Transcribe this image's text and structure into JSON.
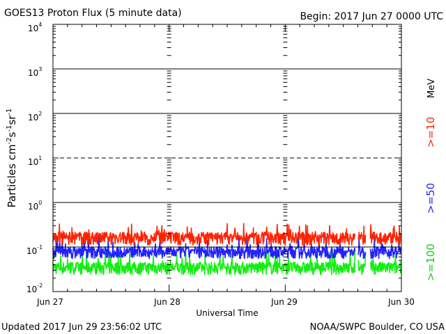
{
  "header": {
    "title": "GOES13 Proton Flux (5 minute data)",
    "begin": "Begin: 2017 Jun 27 0000 UTC"
  },
  "footer": {
    "updated": "Updated 2017 Jun 29 23:56:02 UTC",
    "credit": "NOAA/SWPC Boulder, CO USA"
  },
  "legend": {
    "unit": "MeV",
    "entries": [
      {
        "label": ">=10",
        "color": "#ff2200"
      },
      {
        "label": ">=50",
        "color": "#2222ff"
      },
      {
        "label": ">=100",
        "color": "#11ee11"
      }
    ]
  },
  "chart_data": {
    "type": "line",
    "scale": "log",
    "ylim": [
      0.01,
      10000
    ],
    "ylabel": "Particles cm-2s-1sr-1",
    "xlabel": "Universal Time",
    "x_ticks": [
      "Jun 27",
      "Jun 28",
      "Jun 29",
      "Jun 30"
    ],
    "xlim": [
      "2017-06-27 00:00",
      "2017-06-30 00:00"
    ],
    "y_ticks": [
      {
        "base": "10",
        "exp": "4"
      },
      {
        "base": "10",
        "exp": "3"
      },
      {
        "base": "10",
        "exp": "2"
      },
      {
        "base": "10",
        "exp": "1"
      },
      {
        "base": "10",
        "exp": "0"
      },
      {
        "base": "10",
        "exp": "-1"
      },
      {
        "base": "10",
        "exp": "-2"
      }
    ],
    "reference_lines": [
      {
        "value": 1000,
        "style": "solid"
      },
      {
        "value": 100,
        "style": "solid"
      },
      {
        "value": 10,
        "style": "dashed"
      },
      {
        "value": 1,
        "style": "solid"
      },
      {
        "value": 0.1,
        "style": "solid"
      }
    ],
    "data_gaps": [
      {
        "start": "2017-06-29 14:30",
        "end": "2017-06-29 15:00"
      },
      {
        "start": "2017-06-29 16:40",
        "end": "2017-06-29 17:30"
      }
    ],
    "series": [
      {
        "name": ">=10 MeV",
        "color": "#ff2200",
        "typical": 0.16,
        "low": 0.11,
        "high": 0.34
      },
      {
        "name": ">=50 MeV",
        "color": "#2222ff",
        "typical": 0.075,
        "low": 0.055,
        "high": 0.19
      },
      {
        "name": ">=100 MeV",
        "color": "#11ee11",
        "typical": 0.034,
        "low": 0.024,
        "high": 0.085
      }
    ]
  }
}
